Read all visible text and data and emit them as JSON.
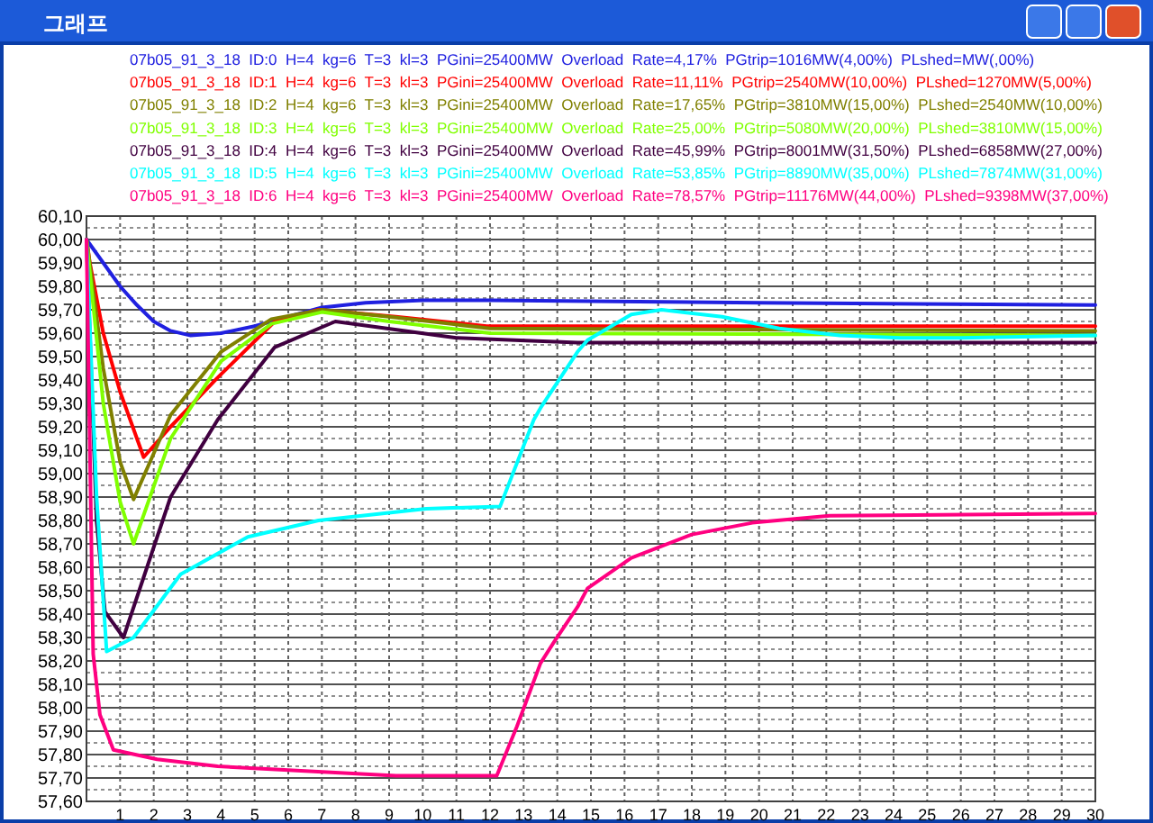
{
  "chart_data": {
    "type": "line",
    "title": "그래프",
    "xlim": [
      0,
      30
    ],
    "ylim": [
      57.6,
      60.1
    ],
    "xticks": [
      1,
      2,
      3,
      4,
      5,
      6,
      7,
      8,
      9,
      10,
      11,
      12,
      13,
      14,
      15,
      16,
      17,
      18,
      19,
      20,
      21,
      22,
      23,
      24,
      25,
      26,
      27,
      28,
      29,
      30
    ],
    "yticks": [
      {
        "value": 57.6,
        "label": "57,60"
      },
      {
        "value": 57.7,
        "label": "57,70"
      },
      {
        "value": 57.8,
        "label": "57,80"
      },
      {
        "value": 57.9,
        "label": "57,90"
      },
      {
        "value": 58.0,
        "label": "58,00"
      },
      {
        "value": 58.1,
        "label": "58,10"
      },
      {
        "value": 58.2,
        "label": "58,20"
      },
      {
        "value": 58.3,
        "label": "58,30"
      },
      {
        "value": 58.4,
        "label": "58,40"
      },
      {
        "value": 58.5,
        "label": "58,50"
      },
      {
        "value": 58.6,
        "label": "58,60"
      },
      {
        "value": 58.7,
        "label": "58,70"
      },
      {
        "value": 58.8,
        "label": "58,80"
      },
      {
        "value": 58.9,
        "label": "58,90"
      },
      {
        "value": 59.0,
        "label": "59,00"
      },
      {
        "value": 59.1,
        "label": "59,10"
      },
      {
        "value": 59.2,
        "label": "59,20"
      },
      {
        "value": 59.3,
        "label": "59,30"
      },
      {
        "value": 59.4,
        "label": "59,40"
      },
      {
        "value": 59.5,
        "label": "59,50"
      },
      {
        "value": 59.6,
        "label": "59,60"
      },
      {
        "value": 59.7,
        "label": "59,70"
      },
      {
        "value": 59.8,
        "label": "59,80"
      },
      {
        "value": 59.9,
        "label": "59,90"
      },
      {
        "value": 60.0,
        "label": "60,00"
      },
      {
        "value": 60.1,
        "label": "60,10"
      }
    ],
    "grid": true,
    "legend": "top",
    "marker": "none",
    "line_style": "solid",
    "series": [
      {
        "name": "07b05_91_3_18  ID:0  H=4  kg=6  T=3  kl=3  PGini=25400MW  Overload  Rate=4,17%  PGtrip=1016MW(4,00%)  PLshed=MW(,00%)",
        "color": "#2020e0",
        "x": [
          0,
          0.5,
          1,
          1.5,
          2,
          2.5,
          3.1,
          4,
          5,
          6,
          7,
          8.3,
          10,
          12,
          20,
          30
        ],
        "values": [
          60.0,
          59.9,
          59.8,
          59.72,
          59.65,
          59.61,
          59.59,
          59.6,
          59.63,
          59.67,
          59.71,
          59.73,
          59.74,
          59.74,
          59.73,
          59.72
        ]
      },
      {
        "name": "07b05_91_3_18  ID:1  H=4  kg=6  T=3  kl=3  PGini=25400MW  Overload  Rate=11,11%  PGtrip=2540MW(10,00%)  PLshed=1270MW(5,00%)",
        "color": "#ff0000",
        "x": [
          0,
          0.1,
          0.5,
          1,
          1.7,
          2.5,
          3.9,
          5.6,
          6.9,
          9.2,
          11.9,
          30
        ],
        "values": [
          60.0,
          59.9,
          59.6,
          59.35,
          59.07,
          59.2,
          59.41,
          59.65,
          59.7,
          59.67,
          59.63,
          59.63
        ]
      },
      {
        "name": "07b05_91_3_18  ID:2  H=4  kg=6  T=3  kl=3  PGini=25400MW  Overload  Rate=17,65%  PGtrip=3810MW(15,00%)  PLshed=2540MW(10,00%)",
        "color": "#808000",
        "x": [
          0,
          0.05,
          0.5,
          1,
          1.4,
          2.5,
          4,
          5.5,
          7,
          9,
          12,
          30
        ],
        "values": [
          60.0,
          59.95,
          59.45,
          59.05,
          58.89,
          59.25,
          59.52,
          59.66,
          59.7,
          59.67,
          59.62,
          59.61
        ]
      },
      {
        "name": "07b05_91_3_18  ID:3  H=4  kg=6  T=3  kl=3  PGini=25400MW  Overload  Rate=25,00%  PGtrip=5080MW(20,00%)  PLshed=3810MW(15,00%)",
        "color": "#80ff00",
        "x": [
          0,
          0.05,
          0.5,
          1,
          1.4,
          2.5,
          4,
          5.5,
          7,
          9,
          12,
          30
        ],
        "values": [
          60.0,
          59.93,
          59.3,
          58.88,
          58.7,
          59.15,
          59.48,
          59.64,
          59.69,
          59.65,
          59.6,
          59.59
        ]
      },
      {
        "name": "07b05_91_3_18  ID:4  H=4  kg=6  T=3  kl=3  PGini=25400MW  Overload  Rate=45,99%  PGtrip=8001MW(31,50%)  PLshed=6858MW(27,00%)",
        "color": "#400040",
        "x": [
          0,
          0.3,
          0.55,
          1.1,
          2.5,
          3.9,
          5.6,
          7.4,
          11,
          14.6,
          30
        ],
        "values": [
          60.0,
          58.8,
          58.41,
          58.3,
          58.9,
          59.23,
          59.54,
          59.65,
          59.58,
          59.56,
          59.56
        ]
      },
      {
        "name": "07b05_91_3_18  ID:5  H=4  kg=6  T=3  kl=3  PGini=25400MW  Overload  Rate=53,85%  PGtrip=8890MW(35,00%)  PLshed=7874MW(31,00%)",
        "color": "#00ffff",
        "x": [
          0,
          0.3,
          0.6,
          1.4,
          2.8,
          4.8,
          6.9,
          10.1,
          12.3,
          13.3,
          13.5,
          14.6,
          14.9,
          16.2,
          17.1,
          18.9,
          20.6,
          22.4,
          24.2,
          26,
          30
        ],
        "values": [
          60.0,
          58.9,
          58.24,
          58.3,
          58.57,
          58.73,
          58.8,
          58.85,
          58.86,
          59.23,
          59.28,
          59.52,
          59.57,
          59.68,
          59.7,
          59.67,
          59.62,
          59.59,
          59.58,
          59.58,
          59.59
        ]
      },
      {
        "name": "07b05_91_3_18  ID:6  H=4  kg=6  T=3  kl=3  PGini=25400MW  Overload  Rate=78,57%  PGtrip=11176MW(44,00%)  PLshed=9398MW(37,00%)",
        "color": "#ff0080",
        "x": [
          0,
          0.2,
          0.4,
          0.8,
          2.1,
          3.9,
          6.5,
          9.2,
          12.2,
          12.8,
          13.5,
          13.9,
          14.6,
          14.9,
          16.2,
          18,
          19.8,
          22.1,
          30
        ],
        "values": [
          60.0,
          58.23,
          57.97,
          57.82,
          57.78,
          57.75,
          57.73,
          57.71,
          57.71,
          57.92,
          58.19,
          58.28,
          58.43,
          58.51,
          58.64,
          58.74,
          58.79,
          58.82,
          58.83
        ]
      }
    ]
  }
}
